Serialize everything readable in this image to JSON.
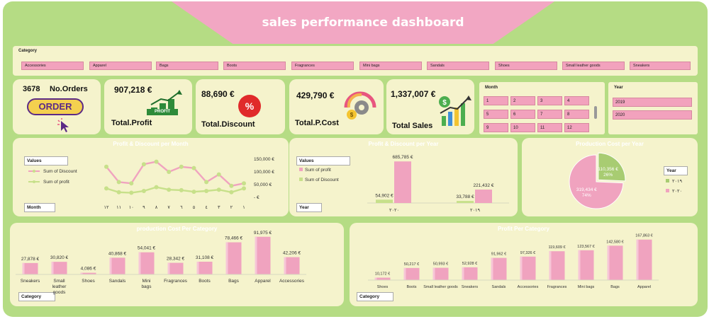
{
  "title": "sales performance dashboard",
  "category_slicer": {
    "label": "Category",
    "items": [
      "Accessories",
      "Apparel",
      "Bags",
      "Boots",
      "Fragrances",
      "Mini bags",
      "Sandals",
      "Shoes",
      "Small leather goods",
      "Sneakers"
    ]
  },
  "kpis": {
    "orders_value": "3678",
    "orders_label": "No.Orders",
    "order_badge": "ORDER",
    "profit_value": "907,218 €",
    "profit_label": "Total.Profit",
    "profit_badge": "PROFIT",
    "discount_value": "88,690 €",
    "discount_label": "Total.Discount",
    "discount_badge": "%",
    "pcost_value": "429,790 €",
    "pcost_label": "Total.P.Cost",
    "sales_value": "1,337,007 €",
    "sales_label": "Total Sales"
  },
  "month_slicer": {
    "label": "Month",
    "items": [
      "1",
      "2",
      "3",
      "4",
      "5",
      "6",
      "7",
      "8",
      "9",
      "10",
      "11",
      "12"
    ]
  },
  "year_slicer": {
    "label": "Year",
    "items": [
      "2019",
      "2020"
    ]
  },
  "chart_data": [
    {
      "id": "pd_month",
      "type": "line",
      "title": "Profit & Discount per Month",
      "values_button": "Values",
      "axis_button": "Month",
      "x": [
        "١٢",
        "١١",
        "١٠",
        "٩",
        "٨",
        "٧",
        "٦",
        "٥",
        "٤",
        "٣",
        "٢",
        "١"
      ],
      "series": [
        {
          "name": "Sum of Discount",
          "color": "#f0a3bf",
          "values": [
            120000,
            60000,
            55000,
            130000,
            140000,
            100000,
            120000,
            115000,
            60000,
            90000,
            45000,
            55000
          ]
        },
        {
          "name": "Sum of profit",
          "color": "#c7e08a",
          "values": [
            35000,
            20000,
            18000,
            25000,
            40000,
            30000,
            28000,
            22000,
            25000,
            30000,
            20000,
            35000
          ]
        }
      ],
      "y_ticks": [
        "150,000 €",
        "100,000 €",
        "50,000 €",
        "- €"
      ],
      "ylim": [
        0,
        150000
      ]
    },
    {
      "id": "pd_year",
      "type": "bar",
      "title": "Profit & Discount per Year",
      "values_button": "Values",
      "axis_button": "Year",
      "categories": [
        "٢٠٢٠",
        "٢٠١٩"
      ],
      "series": [
        {
          "name": "Sum of profit",
          "color": "#f0a3bf",
          "values": [
            685785,
            221432
          ],
          "labels": [
            "685,785 €",
            "221,432 €"
          ]
        },
        {
          "name": "Sum of Discount",
          "color": "#c7e08a",
          "values": [
            54902,
            33788
          ],
          "labels": [
            "54,902 €",
            "33,788 €"
          ]
        }
      ],
      "ylim": [
        0,
        700000
      ]
    },
    {
      "id": "pc_year",
      "type": "pie",
      "title": "Production Cost per Year",
      "legend_title": "Year",
      "slices": [
        {
          "name": "٢٠١٩",
          "value": 110356,
          "label": "110,356 €",
          "pct": "26%",
          "color": "#a8cc72"
        },
        {
          "name": "٢٠٢٠",
          "value": 319434,
          "label": "319,434 €",
          "pct": "74%",
          "color": "#f0a3bf"
        }
      ]
    },
    {
      "id": "pc_category",
      "type": "bar",
      "title": "production Cost Per Category",
      "axis_button": "Category",
      "categories": [
        "Sneakers",
        "Small leather goods",
        "Shoes",
        "Sandals",
        "Mini bags",
        "Fragrances",
        "Boots",
        "Bags",
        "Apparel",
        "Accessories"
      ],
      "values": [
        27878,
        30820,
        4086,
        40868,
        54041,
        28342,
        31108,
        78466,
        91975,
        42206
      ],
      "labels": [
        "27,878 €",
        "30,820 €",
        "4,086 €",
        "40,868 €",
        "54,041 €",
        "28,342 €",
        "31,108 €",
        "78,466 €",
        "91,975 €",
        "42,206 €"
      ],
      "ylim": [
        0,
        95000
      ]
    },
    {
      "id": "profit_category",
      "type": "bar",
      "title": "Profit  Per Category",
      "axis_button": "Category",
      "categories": [
        "Shoes",
        "Boots",
        "Small leather goods",
        "Sneakers",
        "Sandals",
        "Accessories",
        "Fragrances",
        "Mini bags",
        "Bags",
        "Apparel"
      ],
      "values": [
        10172,
        50217,
        50993,
        52928,
        91962,
        97326,
        119609,
        123567,
        142580,
        167863
      ],
      "labels": [
        "10,172 €",
        "50,217 €",
        "50,993 €",
        "52,928 €",
        "91,962 €",
        "97,326 €",
        "119,609 €",
        "123,567 €",
        "142,580 €",
        "167,863 €"
      ],
      "ylim": [
        0,
        170000
      ]
    }
  ]
}
